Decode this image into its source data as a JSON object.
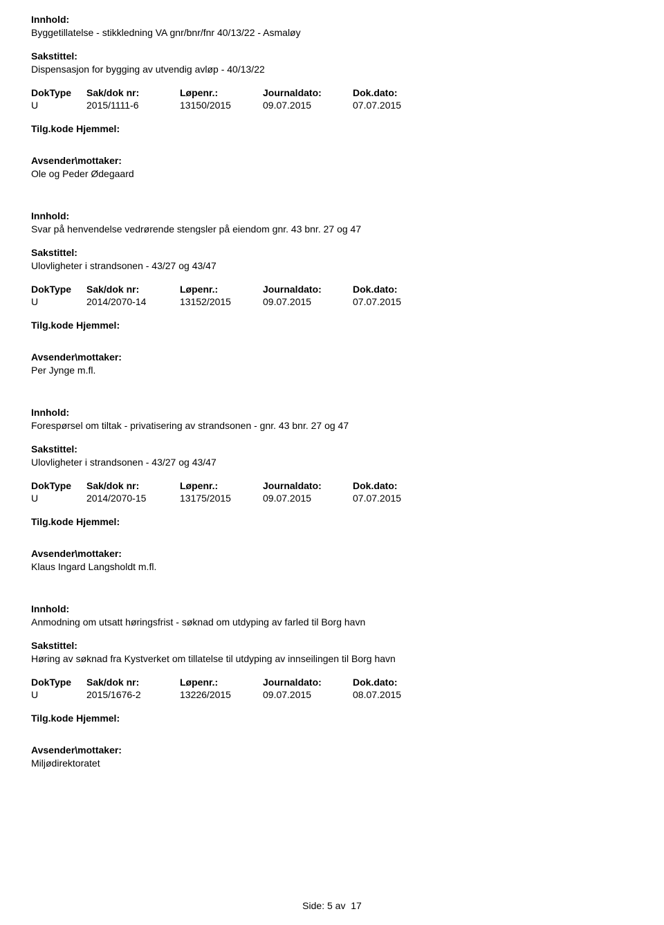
{
  "labels": {
    "innhold": "Innhold:",
    "sakstittel": "Sakstittel:",
    "doktype": "DokType",
    "saknr": "Sak/dok nr:",
    "lopenr": "Løpenr.:",
    "journaldato": "Journaldato:",
    "dokdato": "Dok.dato:",
    "tilgkode": "Tilg.kode",
    "hjemmel": "Hjemmel:",
    "avsender": "Avsender\\mottaker:"
  },
  "entries": [
    {
      "innhold": "Byggetillatelse - stikkledning VA gnr/bnr/fnr 40/13/22 - Asmaløy",
      "sakstittel": "Dispensasjon for bygging av utvendig avløp - 40/13/22",
      "doktype": "U",
      "saknr": "2015/1111-6",
      "lopenr": "13150/2015",
      "journaldato": "09.07.2015",
      "dokdato": "07.07.2015",
      "avsender": "Ole og Peder Ødegaard"
    },
    {
      "innhold": "Svar på henvendelse vedrørende stengsler på eiendom gnr. 43 bnr. 27 og 47",
      "sakstittel": "Ulovligheter i strandsonen - 43/27 og 43/47",
      "doktype": "U",
      "saknr": "2014/2070-14",
      "lopenr": "13152/2015",
      "journaldato": "09.07.2015",
      "dokdato": "07.07.2015",
      "avsender": "Per Jynge m.fl."
    },
    {
      "innhold": "Forespørsel om tiltak - privatisering av strandsonen - gnr. 43 bnr. 27 og 47",
      "sakstittel": "Ulovligheter i strandsonen - 43/27 og 43/47",
      "doktype": "U",
      "saknr": "2014/2070-15",
      "lopenr": "13175/2015",
      "journaldato": "09.07.2015",
      "dokdato": "07.07.2015",
      "avsender": "Klaus Ingard Langsholdt m.fl."
    },
    {
      "innhold": "Anmodning om utsatt høringsfrist - søknad om utdyping av farled til Borg havn",
      "sakstittel": "Høring av søknad fra Kystverket om tillatelse til utdyping av innseilingen til Borg havn",
      "doktype": "U",
      "saknr": "2015/1676-2",
      "lopenr": "13226/2015",
      "journaldato": "09.07.2015",
      "dokdato": "08.07.2015",
      "avsender": "Miljødirektoratet"
    }
  ],
  "footer": {
    "side": "Side:",
    "page": "5",
    "av": "av",
    "total": "17"
  }
}
